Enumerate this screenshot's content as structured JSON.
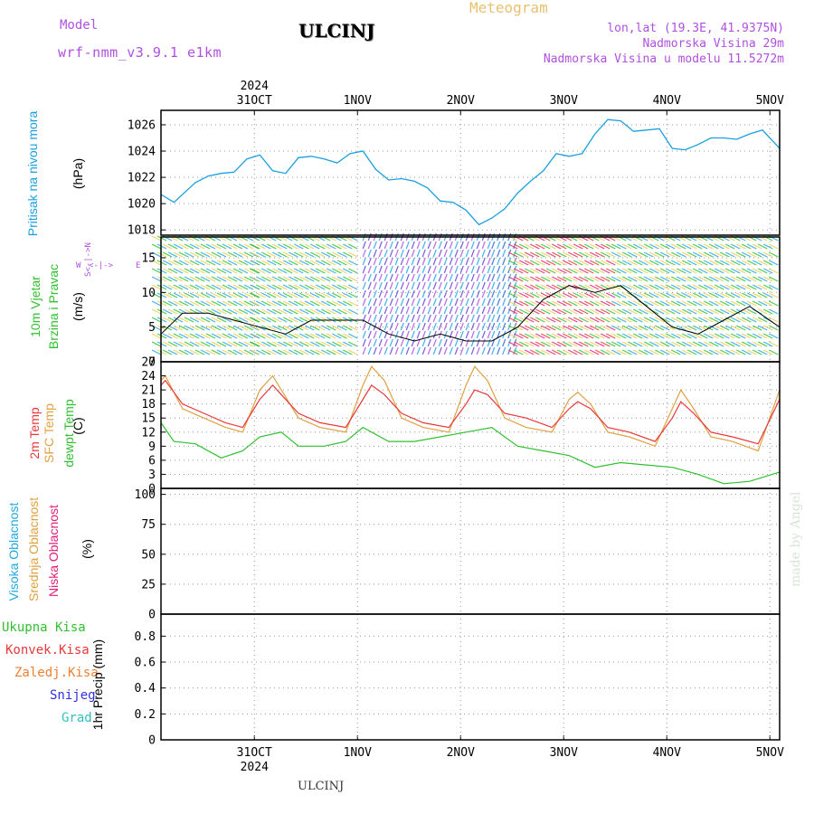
{
  "header": {
    "model_label": "Model",
    "model_name": "wrf-nmm_v3.9.1  e1km",
    "station": "ULCINJ",
    "subtitle": "Meteogram",
    "lonlat": "lon,lat (19.3E, 41.9375N)",
    "elevation": "Nadmorska Visina 29m",
    "model_elevation": "Nadmorska Visina u modelu 11.5272m"
  },
  "footer": {
    "station": "ULCINJ"
  },
  "watermark": "made by Angel",
  "colors": {
    "pressure": "#1aa0e0",
    "red": "#e8383a",
    "tan": "#e0a040",
    "green": "#30c030",
    "cyan": "#20a8e0",
    "pink": "#e0207a",
    "violet": "#b050e0",
    "orange": "#f08030",
    "blue": "#3030e0",
    "teal": "#30c0c0"
  },
  "chart_data": [
    {
      "type": "line",
      "panel": "pressure",
      "ylabel": [
        "Pritisak na nivou mora",
        "(hPa)"
      ],
      "y_ticks": [
        1018,
        1020,
        1022,
        1024,
        1026
      ],
      "ylim": [
        1017.6,
        1027.1
      ],
      "x_start": "2024-10-30T13:00",
      "x_end": "2024-11-05T13:00",
      "x_ticks_top": [
        "31OCT",
        "1NOV",
        "2NOV",
        "3NOV",
        "4NOV",
        "5NOV"
      ],
      "x_tick_year": "2024",
      "grid": true,
      "series": [
        {
          "x": [
            "2024-10-30T13:00",
            "2024-10-30T16:00",
            "2024-10-30T21:00",
            "2024-10-31T00:00",
            "2024-10-31T03:00",
            "2024-10-31T06:00",
            "2024-10-31T09:00",
            "2024-10-31T12:00",
            "2024-10-31T15:00",
            "2024-10-31T18:00",
            "2024-10-31T21:00",
            "2024-11-01T00:00",
            "2024-11-01T03:00",
            "2024-11-01T06:00",
            "2024-11-01T09:00",
            "2024-11-01T12:00",
            "2024-11-01T15:00",
            "2024-11-01T18:00",
            "2024-11-01T21:00",
            "2024-11-02T00:00",
            "2024-11-02T03:00",
            "2024-11-02T06:00",
            "2024-11-02T09:00",
            "2024-11-02T12:00",
            "2024-11-02T15:00",
            "2024-11-02T18:00",
            "2024-11-02T21:00",
            "2024-11-03T00:00",
            "2024-11-03T03:00",
            "2024-11-03T06:00",
            "2024-11-03T09:00",
            "2024-11-03T12:00",
            "2024-11-03T15:00",
            "2024-11-03T18:00",
            "2024-11-03T21:00",
            "2024-11-04T00:00",
            "2024-11-04T03:00",
            "2024-11-04T06:00",
            "2024-11-04T09:00",
            "2024-11-04T12:00",
            "2024-11-04T15:00",
            "2024-11-04T18:00",
            "2024-11-04T21:00",
            "2024-11-05T00:00",
            "2024-11-05T03:00",
            "2024-11-05T06:00",
            "2024-11-05T09:00",
            "2024-11-05T13:00"
          ],
          "values": [
            1020.7,
            1020.1,
            1021.6,
            1022.1,
            1022.3,
            1022.4,
            1023.4,
            1023.7,
            1022.5,
            1022.3,
            1023.5,
            1023.6,
            1023.4,
            1023.1,
            1023.8,
            1024.0,
            1022.6,
            1021.8,
            1021.9,
            1021.7,
            1021.2,
            1020.2,
            1020.1,
            1019.5,
            1018.4,
            1018.9,
            1019.6,
            1020.8,
            1021.7,
            1022.5,
            1023.8,
            1023.6,
            1023.8,
            1025.3,
            1026.4,
            1026.3,
            1025.5,
            1025.6,
            1025.7,
            1024.2,
            1024.1,
            1024.5,
            1025.0,
            1025.0,
            1024.9,
            1025.3,
            1025.6,
            1024.2
          ]
        }
      ]
    },
    {
      "type": "line",
      "panel": "wind",
      "ylabel": [
        "10m Vjetar",
        "Brzina i Pravac",
        "(m/s)"
      ],
      "direction_key": [
        "W",
        "E",
        "N",
        "S"
      ],
      "y_ticks": [
        0,
        5,
        10,
        15
      ],
      "ylim": [
        0,
        18
      ],
      "grid": true,
      "series": [
        {
          "name": "speed",
          "x": [
            "2024-10-30T13:00",
            "2024-10-30T18:00",
            "2024-10-31T00:00",
            "2024-10-31T06:00",
            "2024-10-31T12:00",
            "2024-10-31T18:00",
            "2024-11-01T00:00",
            "2024-11-01T06:00",
            "2024-11-01T12:00",
            "2024-11-01T18:00",
            "2024-11-02T00:00",
            "2024-11-02T06:00",
            "2024-11-02T12:00",
            "2024-11-02T18:00",
            "2024-11-03T00:00",
            "2024-11-03T06:00",
            "2024-11-03T12:00",
            "2024-11-03T18:00",
            "2024-11-04T00:00",
            "2024-11-04T06:00",
            "2024-11-04T12:00",
            "2024-11-04T18:00",
            "2024-11-05T00:00",
            "2024-11-05T06:00",
            "2024-11-05T13:00"
          ],
          "values": [
            4,
            7,
            7,
            6,
            5,
            4,
            6,
            6,
            6,
            4,
            3,
            4,
            3,
            3,
            5,
            9,
            11,
            10,
            11,
            8,
            5,
            4,
            6,
            8,
            5
          ]
        }
      ]
    },
    {
      "type": "line",
      "panel": "temperature",
      "ylabel": [
        "2m Temp",
        "SFC Temp",
        "dewpt Temp",
        "(C)"
      ],
      "y_ticks": [
        0,
        3,
        6,
        9,
        12,
        15,
        18,
        21,
        24,
        27
      ],
      "ylim": [
        0,
        27
      ],
      "grid": true,
      "series": [
        {
          "name": "2m Temp",
          "x": [
            "2024-10-30T13:00",
            "2024-10-30T14:00",
            "2024-10-30T18:00",
            "2024-10-30T23:00",
            "2024-10-31T04:00",
            "2024-10-31T08:00",
            "2024-10-31T12:00",
            "2024-10-31T15:00",
            "2024-10-31T17:00",
            "2024-10-31T21:00",
            "2024-11-01T02:00",
            "2024-11-01T08:00",
            "2024-11-01T12:00",
            "2024-11-01T14:00",
            "2024-11-01T17:00",
            "2024-11-01T21:00",
            "2024-11-02T02:00",
            "2024-11-02T08:00",
            "2024-11-02T12:00",
            "2024-11-02T14:00",
            "2024-11-02T17:00",
            "2024-11-02T21:00",
            "2024-11-03T02:00",
            "2024-11-03T08:00",
            "2024-11-03T12:00",
            "2024-11-03T14:00",
            "2024-11-03T17:00",
            "2024-11-03T21:00",
            "2024-11-04T02:00",
            "2024-11-04T08:00",
            "2024-11-04T12:00",
            "2024-11-04T14:00",
            "2024-11-04T17:00",
            "2024-11-04T21:00",
            "2024-11-05T02:00",
            "2024-11-05T08:00",
            "2024-11-05T13:00"
          ],
          "values": [
            22,
            23,
            18,
            16,
            14,
            13,
            19,
            22,
            20,
            16,
            14,
            13,
            19,
            22,
            20,
            16,
            14,
            13,
            18,
            21,
            20,
            16,
            15,
            13,
            17,
            18.5,
            17,
            13,
            12,
            10,
            15,
            18.5,
            16,
            12,
            11,
            9.5,
            19
          ]
        },
        {
          "name": "SFC Temp",
          "x": [
            "2024-10-30T13:00",
            "2024-10-30T14:00",
            "2024-10-30T18:00",
            "2024-10-30T23:00",
            "2024-10-31T04:00",
            "2024-10-31T08:00",
            "2024-10-31T12:00",
            "2024-10-31T15:00",
            "2024-10-31T17:00",
            "2024-10-31T21:00",
            "2024-11-01T02:00",
            "2024-11-01T08:00",
            "2024-11-01T12:00",
            "2024-11-01T14:00",
            "2024-11-01T17:00",
            "2024-11-01T21:00",
            "2024-11-02T02:00",
            "2024-11-02T08:00",
            "2024-11-02T12:00",
            "2024-11-02T14:00",
            "2024-11-02T17:00",
            "2024-11-02T21:00",
            "2024-11-03T02:00",
            "2024-11-03T08:00",
            "2024-11-03T12:00",
            "2024-11-03T14:00",
            "2024-11-03T17:00",
            "2024-11-03T21:00",
            "2024-11-04T02:00",
            "2024-11-04T08:00",
            "2024-11-04T12:00",
            "2024-11-04T14:00",
            "2024-11-04T17:00",
            "2024-11-04T21:00",
            "2024-11-05T02:00",
            "2024-11-05T08:00",
            "2024-11-05T13:00"
          ],
          "values": [
            23,
            24,
            17,
            15,
            13,
            12,
            21,
            24,
            21,
            15,
            13,
            12,
            22,
            26,
            23,
            15,
            13,
            12,
            22,
            26,
            23,
            15,
            13,
            12,
            19,
            20.5,
            18,
            12,
            11,
            9,
            17,
            21,
            17,
            11,
            10,
            8,
            21
          ]
        },
        {
          "name": "dewpt Temp",
          "x": [
            "2024-10-30T13:00",
            "2024-10-30T16:00",
            "2024-10-30T21:00",
            "2024-10-31T03:00",
            "2024-10-31T08:00",
            "2024-10-31T12:00",
            "2024-10-31T17:00",
            "2024-10-31T21:00",
            "2024-11-01T03:00",
            "2024-11-01T08:00",
            "2024-11-01T12:00",
            "2024-11-01T18:00",
            "2024-11-02T00:00",
            "2024-11-02T06:00",
            "2024-11-02T12:00",
            "2024-11-02T18:00",
            "2024-11-03T00:00",
            "2024-11-03T06:00",
            "2024-11-03T12:00",
            "2024-11-03T18:00",
            "2024-11-04T00:00",
            "2024-11-04T06:00",
            "2024-11-04T12:00",
            "2024-11-04T18:00",
            "2024-11-05T00:00",
            "2024-11-05T06:00",
            "2024-11-05T13:00"
          ],
          "values": [
            14,
            10,
            9.5,
            6.5,
            8,
            11,
            12,
            9,
            9,
            10,
            13,
            10,
            10,
            11,
            12,
            13,
            9,
            8,
            7,
            4.5,
            5.5,
            5,
            4.5,
            3,
            1,
            1.5,
            3.5
          ]
        }
      ]
    },
    {
      "type": "line",
      "panel": "clouds",
      "ylabel": [
        "Visoka Oblacnost",
        "Srednja Oblacnost",
        "Niska Oblacnost",
        "(%)"
      ],
      "y_ticks": [
        0,
        25,
        50,
        75,
        100
      ],
      "ylim": [
        0,
        105
      ],
      "grid": true,
      "series": [
        {
          "name": "Visoka Oblacnost",
          "values": [
            0,
            0
          ]
        },
        {
          "name": "Srednja Oblacnost",
          "values": [
            0,
            0
          ]
        },
        {
          "name": "Niska Oblacnost",
          "values": [
            0,
            0
          ]
        }
      ]
    },
    {
      "type": "bar",
      "panel": "precip",
      "ylabel": "1hr Precip (mm)",
      "legend": [
        "Ukupna Kisa",
        "Konvek.Kisa",
        "Zaledj.Kisa",
        "Snijeg",
        "Grad"
      ],
      "y_ticks": [
        0,
        0.2,
        0.4,
        0.6,
        0.8
      ],
      "ylim": [
        0,
        0.97
      ],
      "x_ticks_bottom": [
        "31OCT",
        "1NOV",
        "2NOV",
        "3NOV",
        "4NOV",
        "5NOV"
      ],
      "x_tick_year": "2024",
      "grid": true,
      "values": []
    }
  ]
}
